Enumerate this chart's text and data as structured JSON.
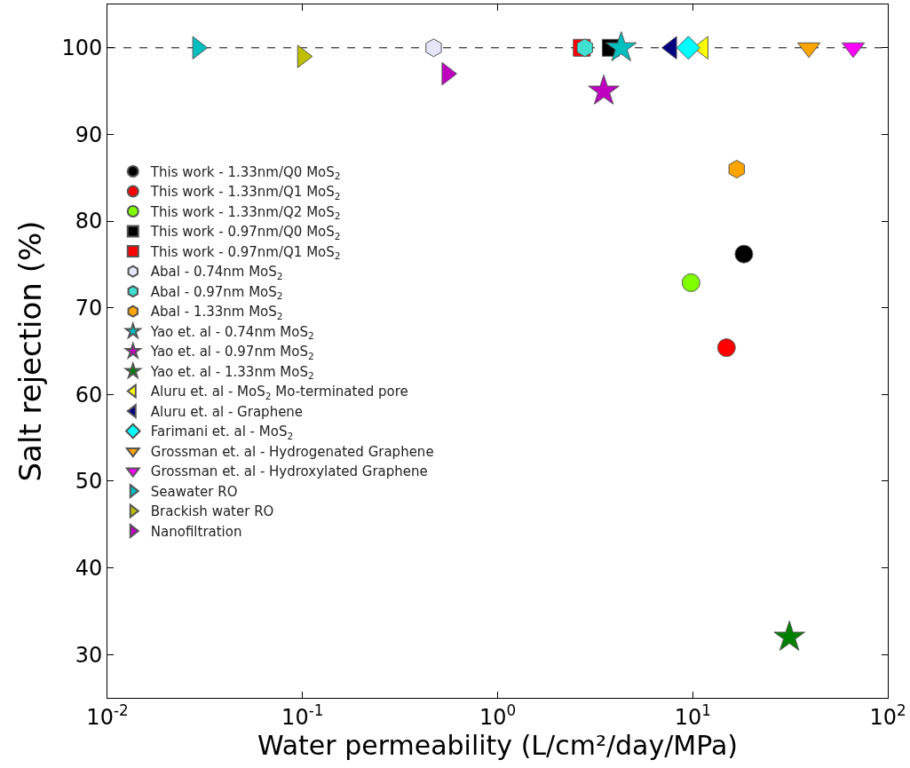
{
  "chart_data": {
    "type": "scatter",
    "xlabel": "Water permeability (L/cm²/day/MPa)",
    "ylabel": "Salt rejection (%)",
    "log": "x",
    "xlim": [
      0.01,
      100
    ],
    "xticks": [
      {
        "value": 0.01,
        "label": "10$^{-2}$"
      },
      {
        "value": 0.1,
        "label": "10$^{-1}$"
      },
      {
        "value": 1,
        "label": "10$^{0}$"
      },
      {
        "value": 10,
        "label": "10$^{1}$"
      },
      {
        "value": 100,
        "label": "10$^{2}$"
      }
    ],
    "ylim": [
      25,
      105
    ],
    "yticks": [
      30,
      40,
      50,
      60,
      70,
      80,
      90,
      100
    ],
    "grid": false,
    "legend": "left",
    "ref_lines": [
      {
        "axis": "y",
        "value": 100,
        "color": "#000000",
        "line_style": "dashed"
      }
    ],
    "series": [
      {
        "name": "This work - 1.33nm/Q0 MoS$_{2}$",
        "color": "#000000",
        "marker": "circle",
        "x": [
          18.3
        ],
        "values": [
          76.2
        ]
      },
      {
        "name": "This work - 1.33nm/Q1 MoS$_{2}$",
        "color": "#ff0000",
        "marker": "circle",
        "x": [
          14.9
        ],
        "values": [
          65.4
        ]
      },
      {
        "name": "This work - 1.33nm/Q2 MoS$_{2}$",
        "color": "#7fff00",
        "marker": "circle",
        "x": [
          9.8
        ],
        "values": [
          72.9
        ]
      },
      {
        "name": "This work - 0.97nm/Q0 MoS$_{2}$",
        "color": "#000000",
        "marker": "square",
        "x": [
          3.8
        ],
        "values": [
          100
        ]
      },
      {
        "name": "This work - 0.97nm/Q1 MoS$_{2}$",
        "color": "#ff0000",
        "marker": "square",
        "x": [
          2.7
        ],
        "values": [
          100
        ]
      },
      {
        "name": "Abal - 0.74nm MoS$_{2}$",
        "color": "#e6e6fa",
        "x": [
          0.47
        ],
        "values": [
          100
        ]
      },
      {
        "name": "Abal - 0.97nm MoS$_{2}$",
        "color": "#40e0d0",
        "x": [
          2.8
        ],
        "values": [
          100
        ]
      },
      {
        "name": "Abal - 1.33nm MoS$_{2}$",
        "color": "#ffa500",
        "x": [
          16.8
        ],
        "values": [
          86
        ]
      },
      {
        "name": "Yao et. al - 0.74nm MoS$_{2}$",
        "color": "#00bfbf",
        "marker": "star",
        "x": [
          4.3
        ],
        "values": [
          100
        ]
      },
      {
        "name": "Yao et. al - 0.97nm MoS$_{2}$",
        "color": "#bf00bf",
        "marker": "star",
        "x": [
          3.5
        ],
        "values": [
          95
        ]
      },
      {
        "name": "Yao et. al - 1.33nm MoS$_{2}$",
        "color": "#008000",
        "marker": "star",
        "x": [
          31.3
        ],
        "values": [
          32
        ]
      },
      {
        "name": "Aluru et. al - MoS$_{2}$ Mo-terminated pore",
        "color": "#ffff00",
        "marker": "triangle-left",
        "x": [
          11.3
        ],
        "values": [
          100
        ]
      },
      {
        "name": "Aluru et. al - Graphene",
        "color": "#000080",
        "marker": "triangle-left",
        "x": [
          7.8
        ],
        "values": [
          100
        ]
      },
      {
        "name": "Farimani et. al - MoS$_{2}$",
        "color": "#00ffff",
        "marker": "diamond",
        "x": [
          9.5
        ],
        "values": [
          100
        ]
      },
      {
        "name": "Grossman et. al - Hydrogenated Graphene",
        "color": "#ffa500",
        "marker": "triangle-down",
        "x": [
          39.4
        ],
        "values": [
          100
        ]
      },
      {
        "name": "Grossman et. al - Hydroxylated Graphene",
        "color": "#ff00ff",
        "marker": "triangle-down",
        "x": [
          66.5
        ],
        "values": [
          100
        ]
      },
      {
        "name": "Seawater RO",
        "color": "#00bfbf",
        "marker": "triangle-right",
        "x": [
          0.029
        ],
        "values": [
          100
        ]
      },
      {
        "name": "Brackish water RO",
        "color": "#bfbf00",
        "marker": "triangle-right",
        "x": [
          0.1
        ],
        "values": [
          99
        ]
      },
      {
        "name": "Nanofiltration",
        "color": "#bf00bf",
        "marker": "triangle-right",
        "x": [
          0.55
        ],
        "values": [
          97
        ]
      }
    ]
  }
}
